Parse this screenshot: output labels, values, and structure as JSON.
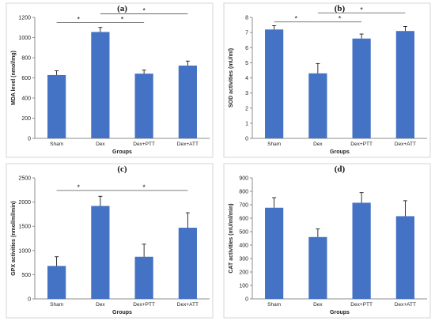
{
  "chart_data": [
    {
      "type": "bar",
      "panel_label": "(a)",
      "categories": [
        "Sham",
        "Dex",
        "Dex+PTT",
        "Dex+ATT"
      ],
      "values": [
        628,
        1055,
        642,
        722
      ],
      "errors": [
        42,
        45,
        35,
        45
      ],
      "color": "#4472c4",
      "xlabel": "Groups",
      "ylabel": "MDA level (nmol/mg)",
      "ylim": [
        0,
        1200
      ],
      "yticks": [
        0,
        200,
        400,
        600,
        800,
        1000,
        1200
      ],
      "significance": [
        {
          "from": 0,
          "to": 1,
          "label": "*",
          "level": 1150
        },
        {
          "from": 1,
          "to": 2,
          "label": "*",
          "level": 1150
        },
        {
          "from": 1,
          "to": 3,
          "label": "*",
          "level": 1235
        }
      ]
    },
    {
      "type": "bar",
      "panel_label": "(b)",
      "categories": [
        "Sham",
        "Dex",
        "Dex+PTT",
        "Dex+ATT"
      ],
      "values": [
        7.2,
        4.3,
        6.6,
        7.1
      ],
      "errors": [
        0.25,
        0.65,
        0.3,
        0.3
      ],
      "color": "#4472c4",
      "xlabel": "Groups",
      "ylabel": "SOD activities (mU/ml)",
      "ylim": [
        0,
        8
      ],
      "yticks": [
        0,
        1,
        2,
        3,
        4,
        5,
        6,
        7,
        8
      ],
      "significance": [
        {
          "from": 0,
          "to": 1,
          "label": "*",
          "level": 7.7
        },
        {
          "from": 1,
          "to": 2,
          "label": "*",
          "level": 7.7
        },
        {
          "from": 1,
          "to": 3,
          "label": "*",
          "level": 8.3
        }
      ]
    },
    {
      "type": "bar",
      "panel_label": "(c)",
      "categories": [
        "Sham",
        "Dex",
        "Dex+PTT",
        "Dex+ATT"
      ],
      "values": [
        680,
        1920,
        870,
        1470
      ],
      "errors": [
        190,
        200,
        260,
        310
      ],
      "color": "#4472c4",
      "xlabel": "Groups",
      "ylabel": "GPX activities (nmol/ml/min)",
      "ylim": [
        0,
        2500
      ],
      "yticks": [
        0,
        500,
        1000,
        1500,
        2000,
        2500
      ],
      "significance": [
        {
          "from": 0,
          "to": 1,
          "label": "*",
          "level": 2240
        },
        {
          "from": 1,
          "to": 3,
          "label": "*",
          "level": 2240
        }
      ]
    },
    {
      "type": "bar",
      "panel_label": "(d)",
      "categories": [
        "Sham",
        "Dex",
        "Dex+PTT",
        "Dex+ATT"
      ],
      "values": [
        678,
        460,
        715,
        615
      ],
      "errors": [
        75,
        60,
        75,
        115
      ],
      "color": "#4472c4",
      "xlabel": "Groups",
      "ylabel": "CAT activities (mU/ml/min)",
      "ylim": [
        0,
        900
      ],
      "yticks": [
        0,
        100,
        200,
        300,
        400,
        500,
        600,
        700,
        800,
        900
      ],
      "significance": []
    }
  ]
}
